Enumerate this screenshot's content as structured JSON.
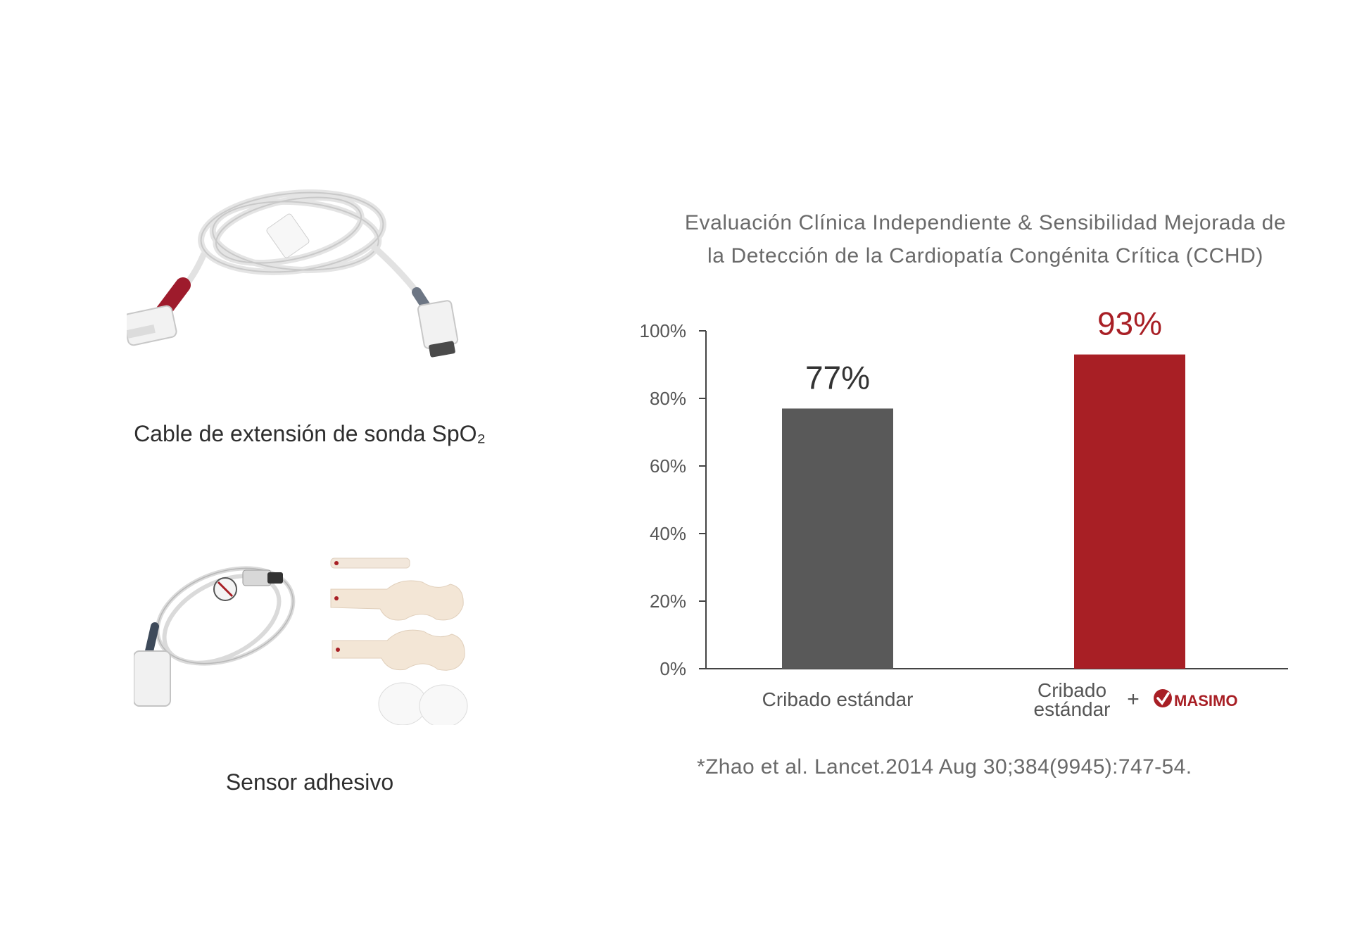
{
  "products": [
    {
      "caption": "Cable de extensión de sonda SpO₂",
      "image": "spo2-extension-cable"
    },
    {
      "caption": "Sensor adhesivo",
      "image": "adhesive-sensor-kit"
    }
  ],
  "chart_data": {
    "type": "bar",
    "title": "Evaluación Clínica Independiente & Sensibilidad Mejorada de la Detección de la Cardiopatía Congénita Crítica (CCHD)",
    "title_lines": [
      "Evaluación Clínica Independiente & Sensibilidad Mejorada de",
      "la Detección de la Cardiopatía Congénita Crítica (CCHD)"
    ],
    "categories": [
      "Cribado estándar",
      "Cribado estándar + Masimo"
    ],
    "category_labels": [
      {
        "lines": [
          "Cribado estándar"
        ]
      },
      {
        "lines": [
          "Cribado",
          "estándar"
        ],
        "plus": "+",
        "logo": "MASIMO"
      }
    ],
    "values": [
      77,
      93
    ],
    "data_labels": [
      "77%",
      "93%"
    ],
    "colors": [
      "#595959",
      "#a81f25"
    ],
    "label_colors": [
      "#333333",
      "#a81f25"
    ],
    "ylim": [
      0,
      100
    ],
    "yticks": [
      0,
      20,
      40,
      60,
      80,
      100
    ],
    "ytick_labels": [
      "0%",
      "20%",
      "40%",
      "60%",
      "80%",
      "100%"
    ],
    "xlabel": "",
    "ylabel": "",
    "grid": false,
    "legend": "none"
  },
  "citation": "*Zhao et al. Lancet.2014 Aug 30;384(9945):747-54."
}
